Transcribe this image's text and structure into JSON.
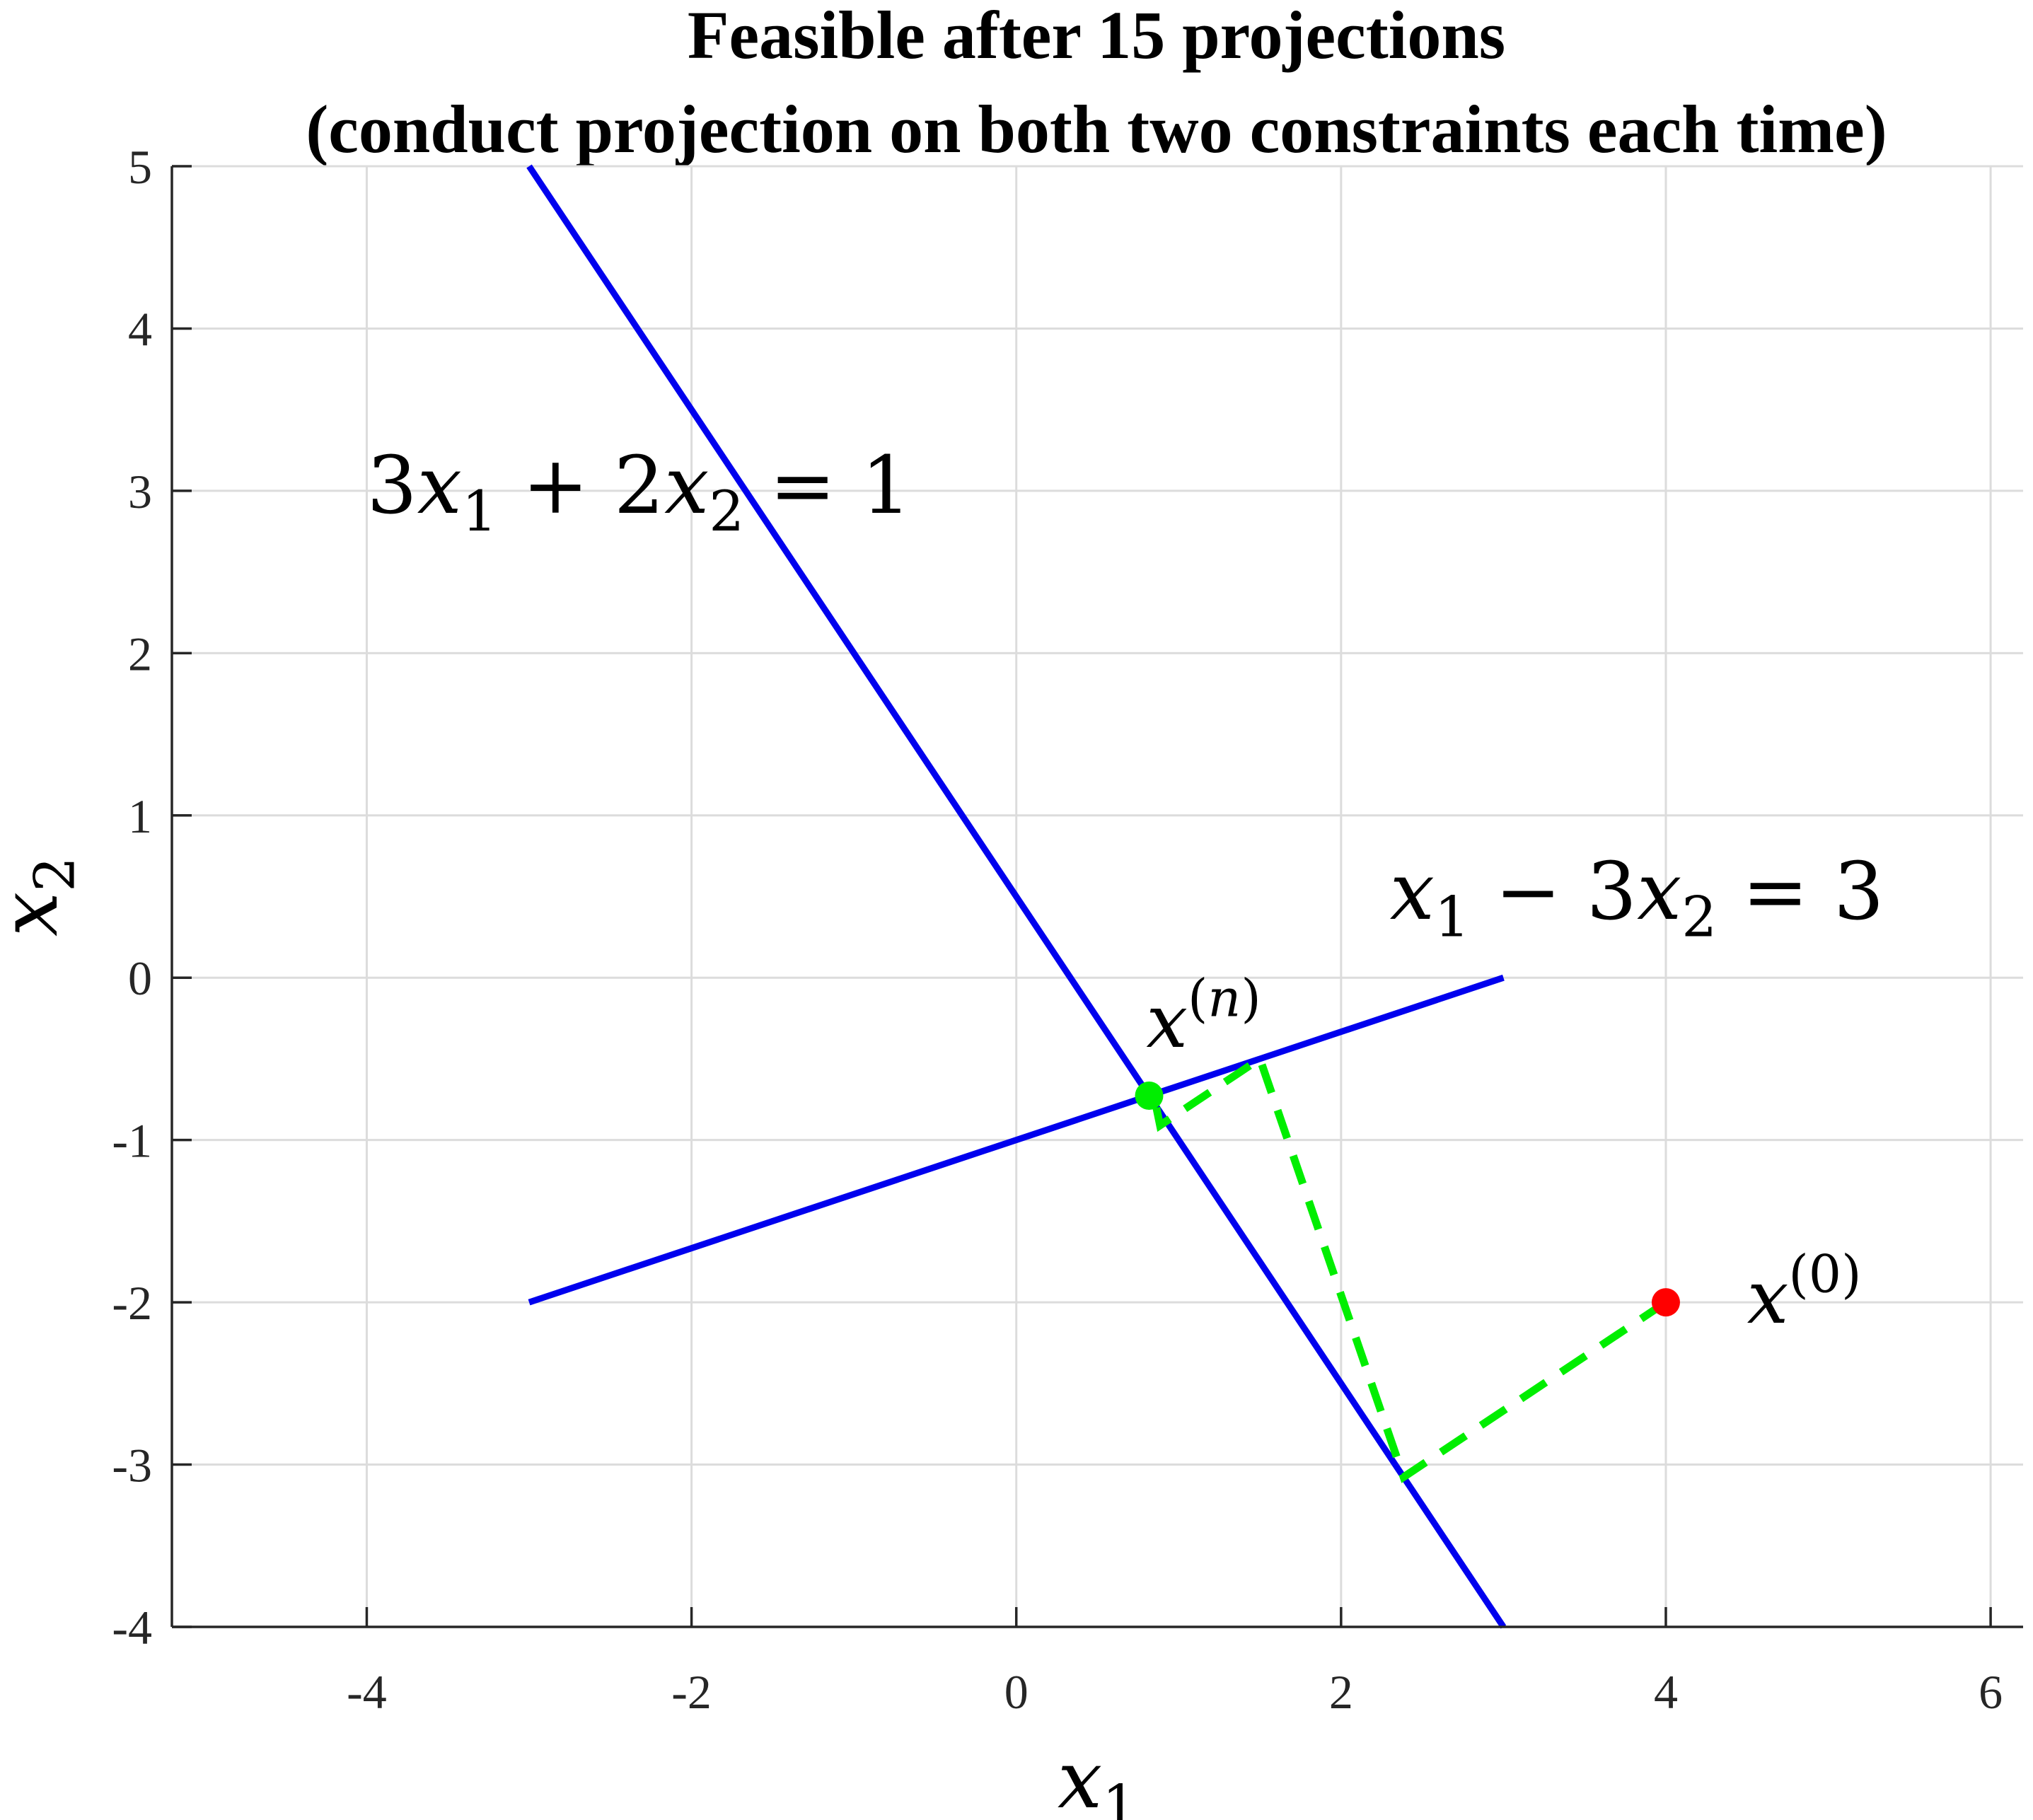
{
  "chart_data": {
    "type": "line",
    "title": [
      "Feasible after 15 projections",
      "(conduct projection on both two constraints each time)"
    ],
    "xlabel": {
      "base": "x",
      "sub": "1"
    },
    "ylabel": {
      "base": "x",
      "sub": "2"
    },
    "xlim": [
      -5.2,
      6.2
    ],
    "ylim": [
      -4,
      5
    ],
    "xticks": [
      -4,
      -2,
      0,
      2,
      4,
      6
    ],
    "yticks": [
      -4,
      -3,
      -2,
      -1,
      0,
      1,
      2,
      3,
      4,
      5
    ],
    "xtick_labels": [
      "-4",
      "-2",
      "0",
      "2",
      "4",
      "6"
    ],
    "ytick_labels": [
      "-4",
      "-3",
      "-2",
      "-1",
      "0",
      "1",
      "2",
      "3",
      "4",
      "5"
    ],
    "grid": true,
    "series": [
      {
        "kind": "constraint",
        "color": "#0000ee",
        "style": "solid",
        "points": [
          [
            -3,
            5
          ],
          [
            3,
            -4
          ]
        ]
      },
      {
        "kind": "constraint",
        "color": "#0000ee",
        "style": "solid",
        "points": [
          [
            -3,
            -2
          ],
          [
            3,
            0
          ]
        ]
      },
      {
        "kind": "projection-path",
        "color": "#00ee00",
        "style": "dashed",
        "points": [
          [
            4,
            -2
          ],
          [
            2.385,
            -3.077
          ],
          [
            1.5,
            -0.5
          ],
          [
            0.885,
            -0.91
          ],
          [
            0.846,
            -0.718
          ]
        ]
      }
    ],
    "markers": [
      {
        "kind": "start-point",
        "x": 4,
        "y": -2,
        "color": "#ff0000"
      },
      {
        "kind": "end-point",
        "x": 0.818,
        "y": -0.727,
        "color": "#00ee00"
      }
    ],
    "annotations": [
      {
        "kind": "equation",
        "x": -4,
        "y": 3,
        "parts": [
          {
            "t": "3",
            "s": "n"
          },
          {
            "t": "x",
            "s": "i"
          },
          {
            "t": "1",
            "s": "sub"
          },
          {
            "t": " + 2",
            "s": "n"
          },
          {
            "t": "x",
            "s": "i"
          },
          {
            "t": "2",
            "s": "sub"
          },
          {
            "t": " = 1",
            "s": "n"
          }
        ]
      },
      {
        "kind": "equation",
        "x": 2.3,
        "y": 0.5,
        "parts": [
          {
            "t": "x",
            "s": "i"
          },
          {
            "t": "1",
            "s": "sub"
          },
          {
            "t": " − 3",
            "s": "n"
          },
          {
            "t": "x",
            "s": "i"
          },
          {
            "t": "2",
            "s": "sub"
          },
          {
            "t": " = 3",
            "s": "n"
          }
        ]
      },
      {
        "kind": "point-label",
        "x": 0.8,
        "y": -0.3,
        "parts": [
          {
            "t": "x",
            "s": "i"
          },
          {
            "t": "(",
            "s": "sup"
          },
          {
            "t": "n",
            "s": "supi"
          },
          {
            "t": ")",
            "s": "sup"
          }
        ]
      },
      {
        "kind": "point-label",
        "x": 4.5,
        "y": -2,
        "parts": [
          {
            "t": "x",
            "s": "i"
          },
          {
            "t": "(0)",
            "s": "sup"
          }
        ]
      }
    ]
  }
}
